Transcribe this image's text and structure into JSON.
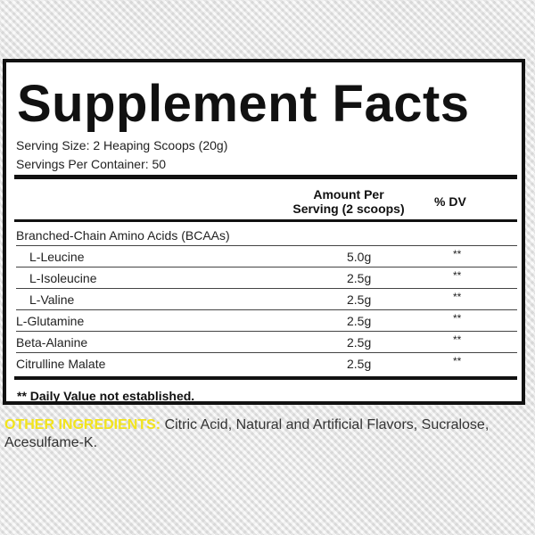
{
  "title": "Supplement Facts",
  "serving_size": "Serving Size: 2 Heaping Scoops (20g)",
  "servings_per_container": "Servings Per Container: 50",
  "header": {
    "amount_line1": "Amount Per",
    "amount_line2": "Serving (2 scoops)",
    "dv": "% DV"
  },
  "group_label": "Branched-Chain Amino Acids (BCAAs)",
  "rows": [
    {
      "name": "L-Leucine",
      "amount": "5.0g",
      "dv": "**",
      "indent": true
    },
    {
      "name": "L-Isoleucine",
      "amount": "2.5g",
      "dv": "**",
      "indent": true
    },
    {
      "name": "L-Valine",
      "amount": "2.5g",
      "dv": "**",
      "indent": true
    },
    {
      "name": "L-Glutamine",
      "amount": "2.5g",
      "dv": "**",
      "indent": false
    },
    {
      "name": "Beta-Alanine",
      "amount": "2.5g",
      "dv": "**",
      "indent": false
    },
    {
      "name": "Citrulline Malate",
      "amount": "2.5g",
      "dv": "**",
      "indent": false
    }
  ],
  "footnote": "** Daily Value not established.",
  "other_ingredients": {
    "label": "OTHER INGREDIENTS:",
    "text": " Citric Acid, Natural and Artificial Flavors, Sucralose, Acesulfame-K.",
    "label_color": "#f2e41c"
  }
}
